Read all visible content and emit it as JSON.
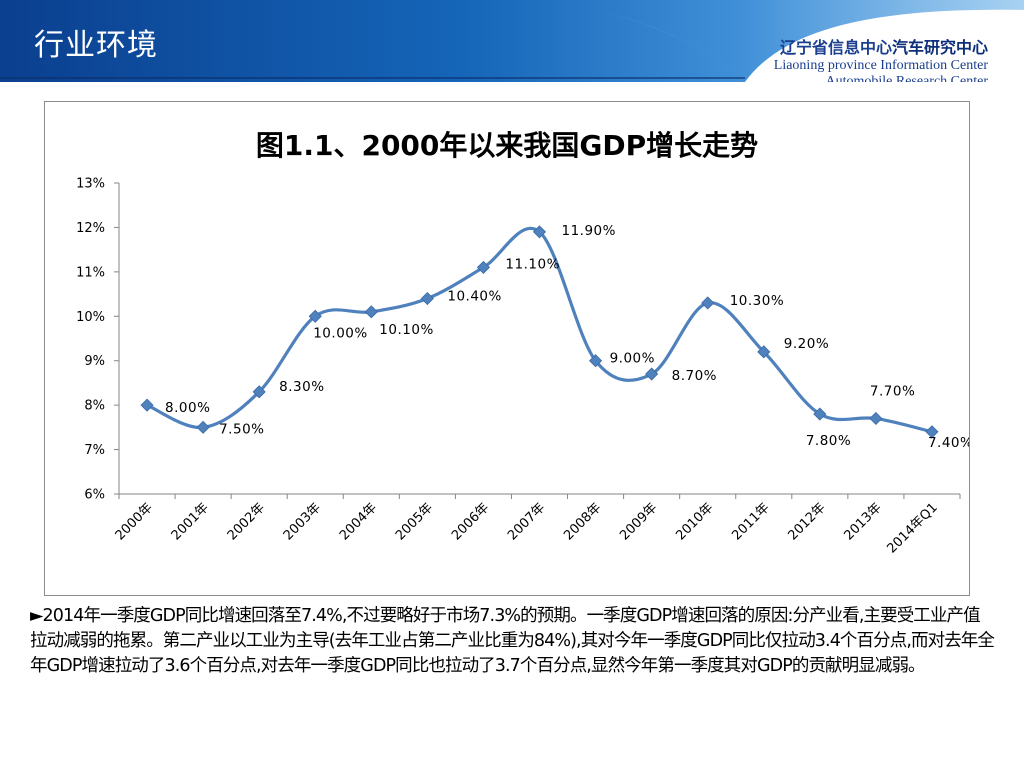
{
  "header": {
    "section_title": "行业环境",
    "org_cn_plain": "辽宁省信息中心",
    "org_cn_strong": "汽车研究中心",
    "org_en_line1": "Liaoning province Information Center",
    "org_en_line2": "Automobile Research Center",
    "colors": {
      "banner_dark": "#0b3f8f",
      "banner_mid": "#1d6fc6",
      "banner_light": "#8fc4ee"
    }
  },
  "chart_data": {
    "type": "line",
    "title": "图1.1、2000年以来我国GDP增长走势",
    "categories": [
      "2000年",
      "2001年",
      "2002年",
      "2003年",
      "2004年",
      "2005年",
      "2006年",
      "2007年",
      "2008年",
      "2009年",
      "2010年",
      "2011年",
      "2012年",
      "2013年",
      "2014年Q1"
    ],
    "series": [
      {
        "values": [
          8.0,
          7.5,
          8.3,
          10.0,
          10.1,
          10.4,
          11.1,
          11.9,
          9.0,
          8.7,
          10.3,
          9.2,
          7.8,
          7.7,
          7.4
        ],
        "data_labels": [
          "8.00%",
          "7.50%",
          "8.30%",
          "10.00%",
          "10.10%",
          "10.40%",
          "11.10%",
          "11.90%",
          "9.00%",
          "8.70%",
          "10.30%",
          "9.20%",
          "7.80%",
          "7.70%",
          "7.40%"
        ]
      }
    ],
    "y_ticks": [
      "6%",
      "7%",
      "8%",
      "9%",
      "10%",
      "11%",
      "12%",
      "13%"
    ],
    "ylim": [
      6,
      13
    ],
    "grid": false,
    "legend": "none",
    "xlabel": "",
    "ylabel": "",
    "line_color": "#4f81bd",
    "marker": "diamond",
    "smooth": true
  },
  "note": "►2014年一季度GDP同比增速回落至7.4%,不过要略好于市场7.3%的预期。一季度GDP增速回落的原因:分产业看,主要受工业产值拉动减弱的拖累。第二产业以工业为主导(去年工业占第二产业比重为84%),其对今年一季度GDP同比仅拉动3.4个百分点,而对去年全年GDP增速拉动了3.6个百分点,对去年一季度GDP同比也拉动了3.7个百分点,显然今年第一季度其对GDP的贡献明显减弱。"
}
